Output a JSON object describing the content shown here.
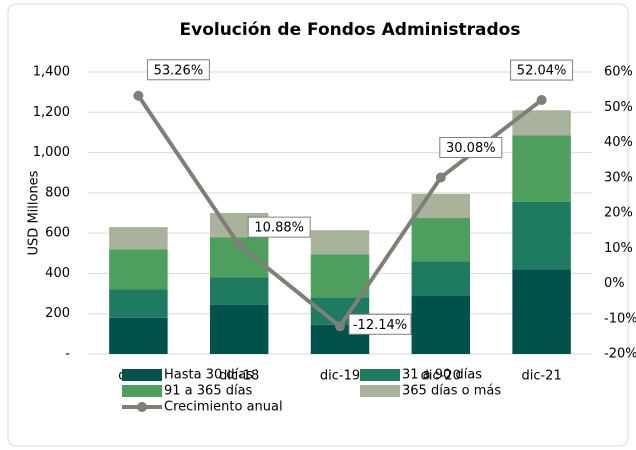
{
  "chart_data": {
    "type": "stacked-bar-line",
    "title": "Evolución de Fondos Administrados",
    "y_label": "USD Millones",
    "categories": [
      "dic-17",
      "dic-18",
      "dic-19",
      "dic-20",
      "dic-21"
    ],
    "series": [
      {
        "name": "Hasta 30 días",
        "color": "#00524a",
        "values": [
          180,
          245,
          145,
          290,
          420
        ]
      },
      {
        "name": "31 a 90 días",
        "color": "#1f7a62",
        "values": [
          140,
          135,
          135,
          170,
          335
        ]
      },
      {
        "name": "91 a 365 días",
        "color": "#4e9e5e",
        "values": [
          200,
          200,
          215,
          215,
          330
        ]
      },
      {
        "name": "365 días o más",
        "color": "#a9b39c",
        "values": [
          110,
          120,
          120,
          120,
          125
        ]
      },
      {
        "name": "Crecimiento anual",
        "color": "#7f7f78",
        "axis": "y2",
        "values": [
          53.26,
          10.88,
          -12.14,
          30.08,
          52.04
        ],
        "value_labels": [
          "53.26%",
          "10.88%",
          "-12.14%",
          "30.08%",
          "52.04%"
        ]
      }
    ],
    "ylim": [
      0,
      1400
    ],
    "yticks": [
      {
        "value": 0,
        "label": "-"
      },
      200,
      400,
      600,
      800,
      {
        "value": 1000,
        "label": "1,000"
      },
      {
        "value": 1200,
        "label": "1,200"
      },
      {
        "value": 1400,
        "label": "1,400"
      }
    ],
    "y2lim": [
      -20,
      60
    ],
    "y2ticks": [
      {
        "value": -20,
        "label": "-20%"
      },
      {
        "value": -10,
        "label": "-10%"
      },
      {
        "value": 0,
        "label": "0%"
      },
      {
        "value": 10,
        "label": "10%"
      },
      {
        "value": 20,
        "label": "20%"
      },
      {
        "value": 30,
        "label": "30%"
      },
      {
        "value": 40,
        "label": "40%"
      },
      {
        "value": 50,
        "label": "50%"
      },
      {
        "value": 60,
        "label": "60%"
      }
    ],
    "grid": true
  }
}
